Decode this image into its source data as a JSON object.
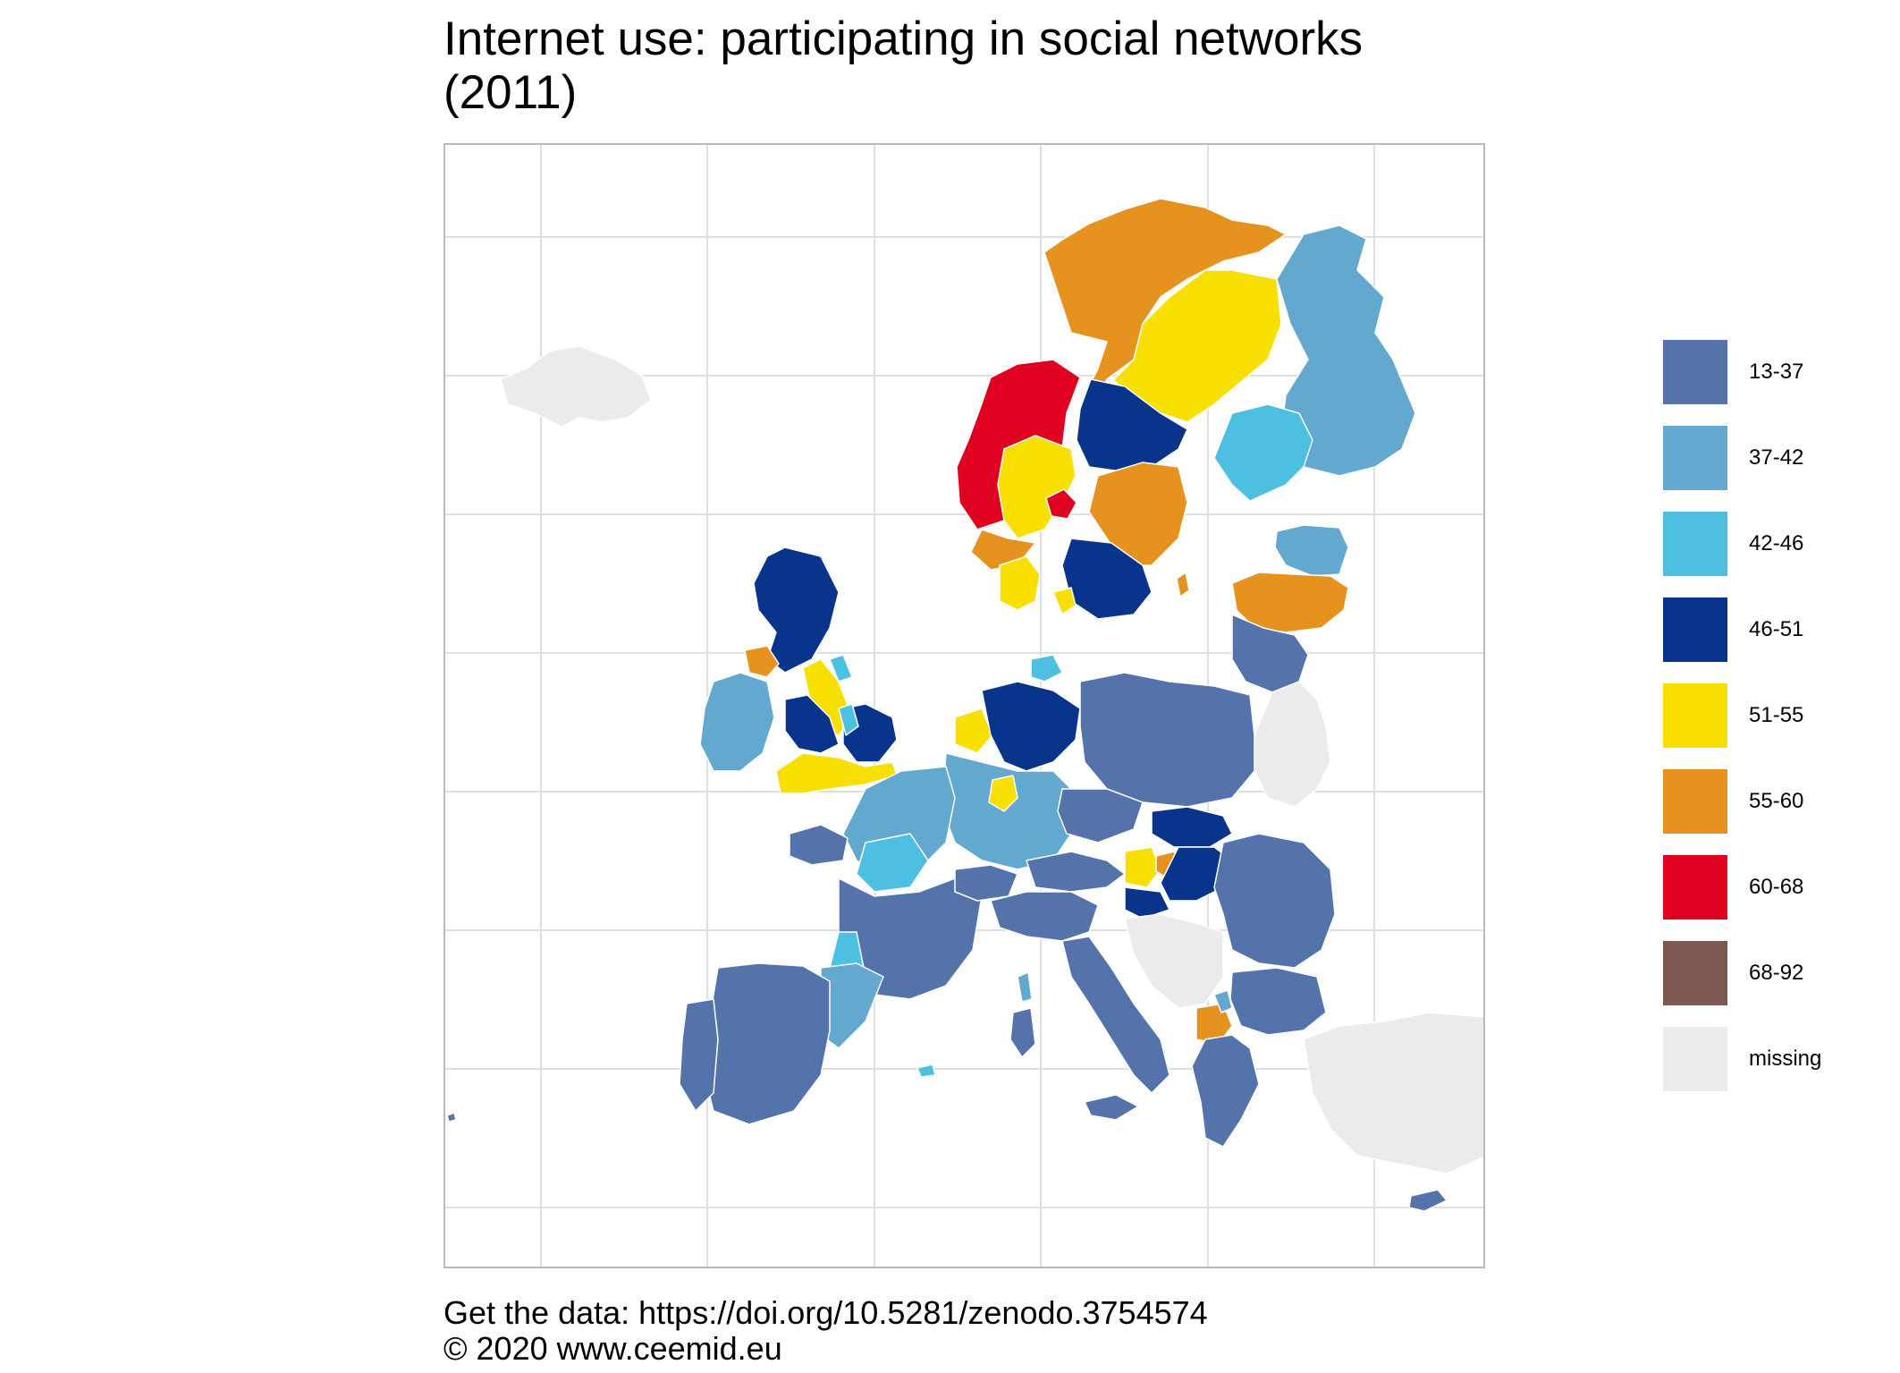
{
  "title": {
    "line1": "Internet use: participating in social networks",
    "line2": "(2011)"
  },
  "legend": {
    "items": [
      {
        "label": "13-37",
        "color": "#5473AB"
      },
      {
        "label": "37-42",
        "color": "#63A8CE"
      },
      {
        "label": "42-46",
        "color": "#4DC0E2"
      },
      {
        "label": "46-51",
        "color": "#08348B"
      },
      {
        "label": "51-55",
        "color": "#F7DF00"
      },
      {
        "label": "55-60",
        "color": "#E5921E"
      },
      {
        "label": "60-68",
        "color": "#DF011F"
      },
      {
        "label": "68-92",
        "color": "#7D5751"
      },
      {
        "label": "missing",
        "color": "#EBEBEB"
      }
    ]
  },
  "caption": {
    "line1": "Get the data: https://doi.org/10.5281/zenodo.3754574",
    "line2": "© 2020 www.ceemid.eu"
  },
  "colors": {
    "grid": "#dedede",
    "frame": "#b9b9b9",
    "borders": "#ffffff"
  }
}
